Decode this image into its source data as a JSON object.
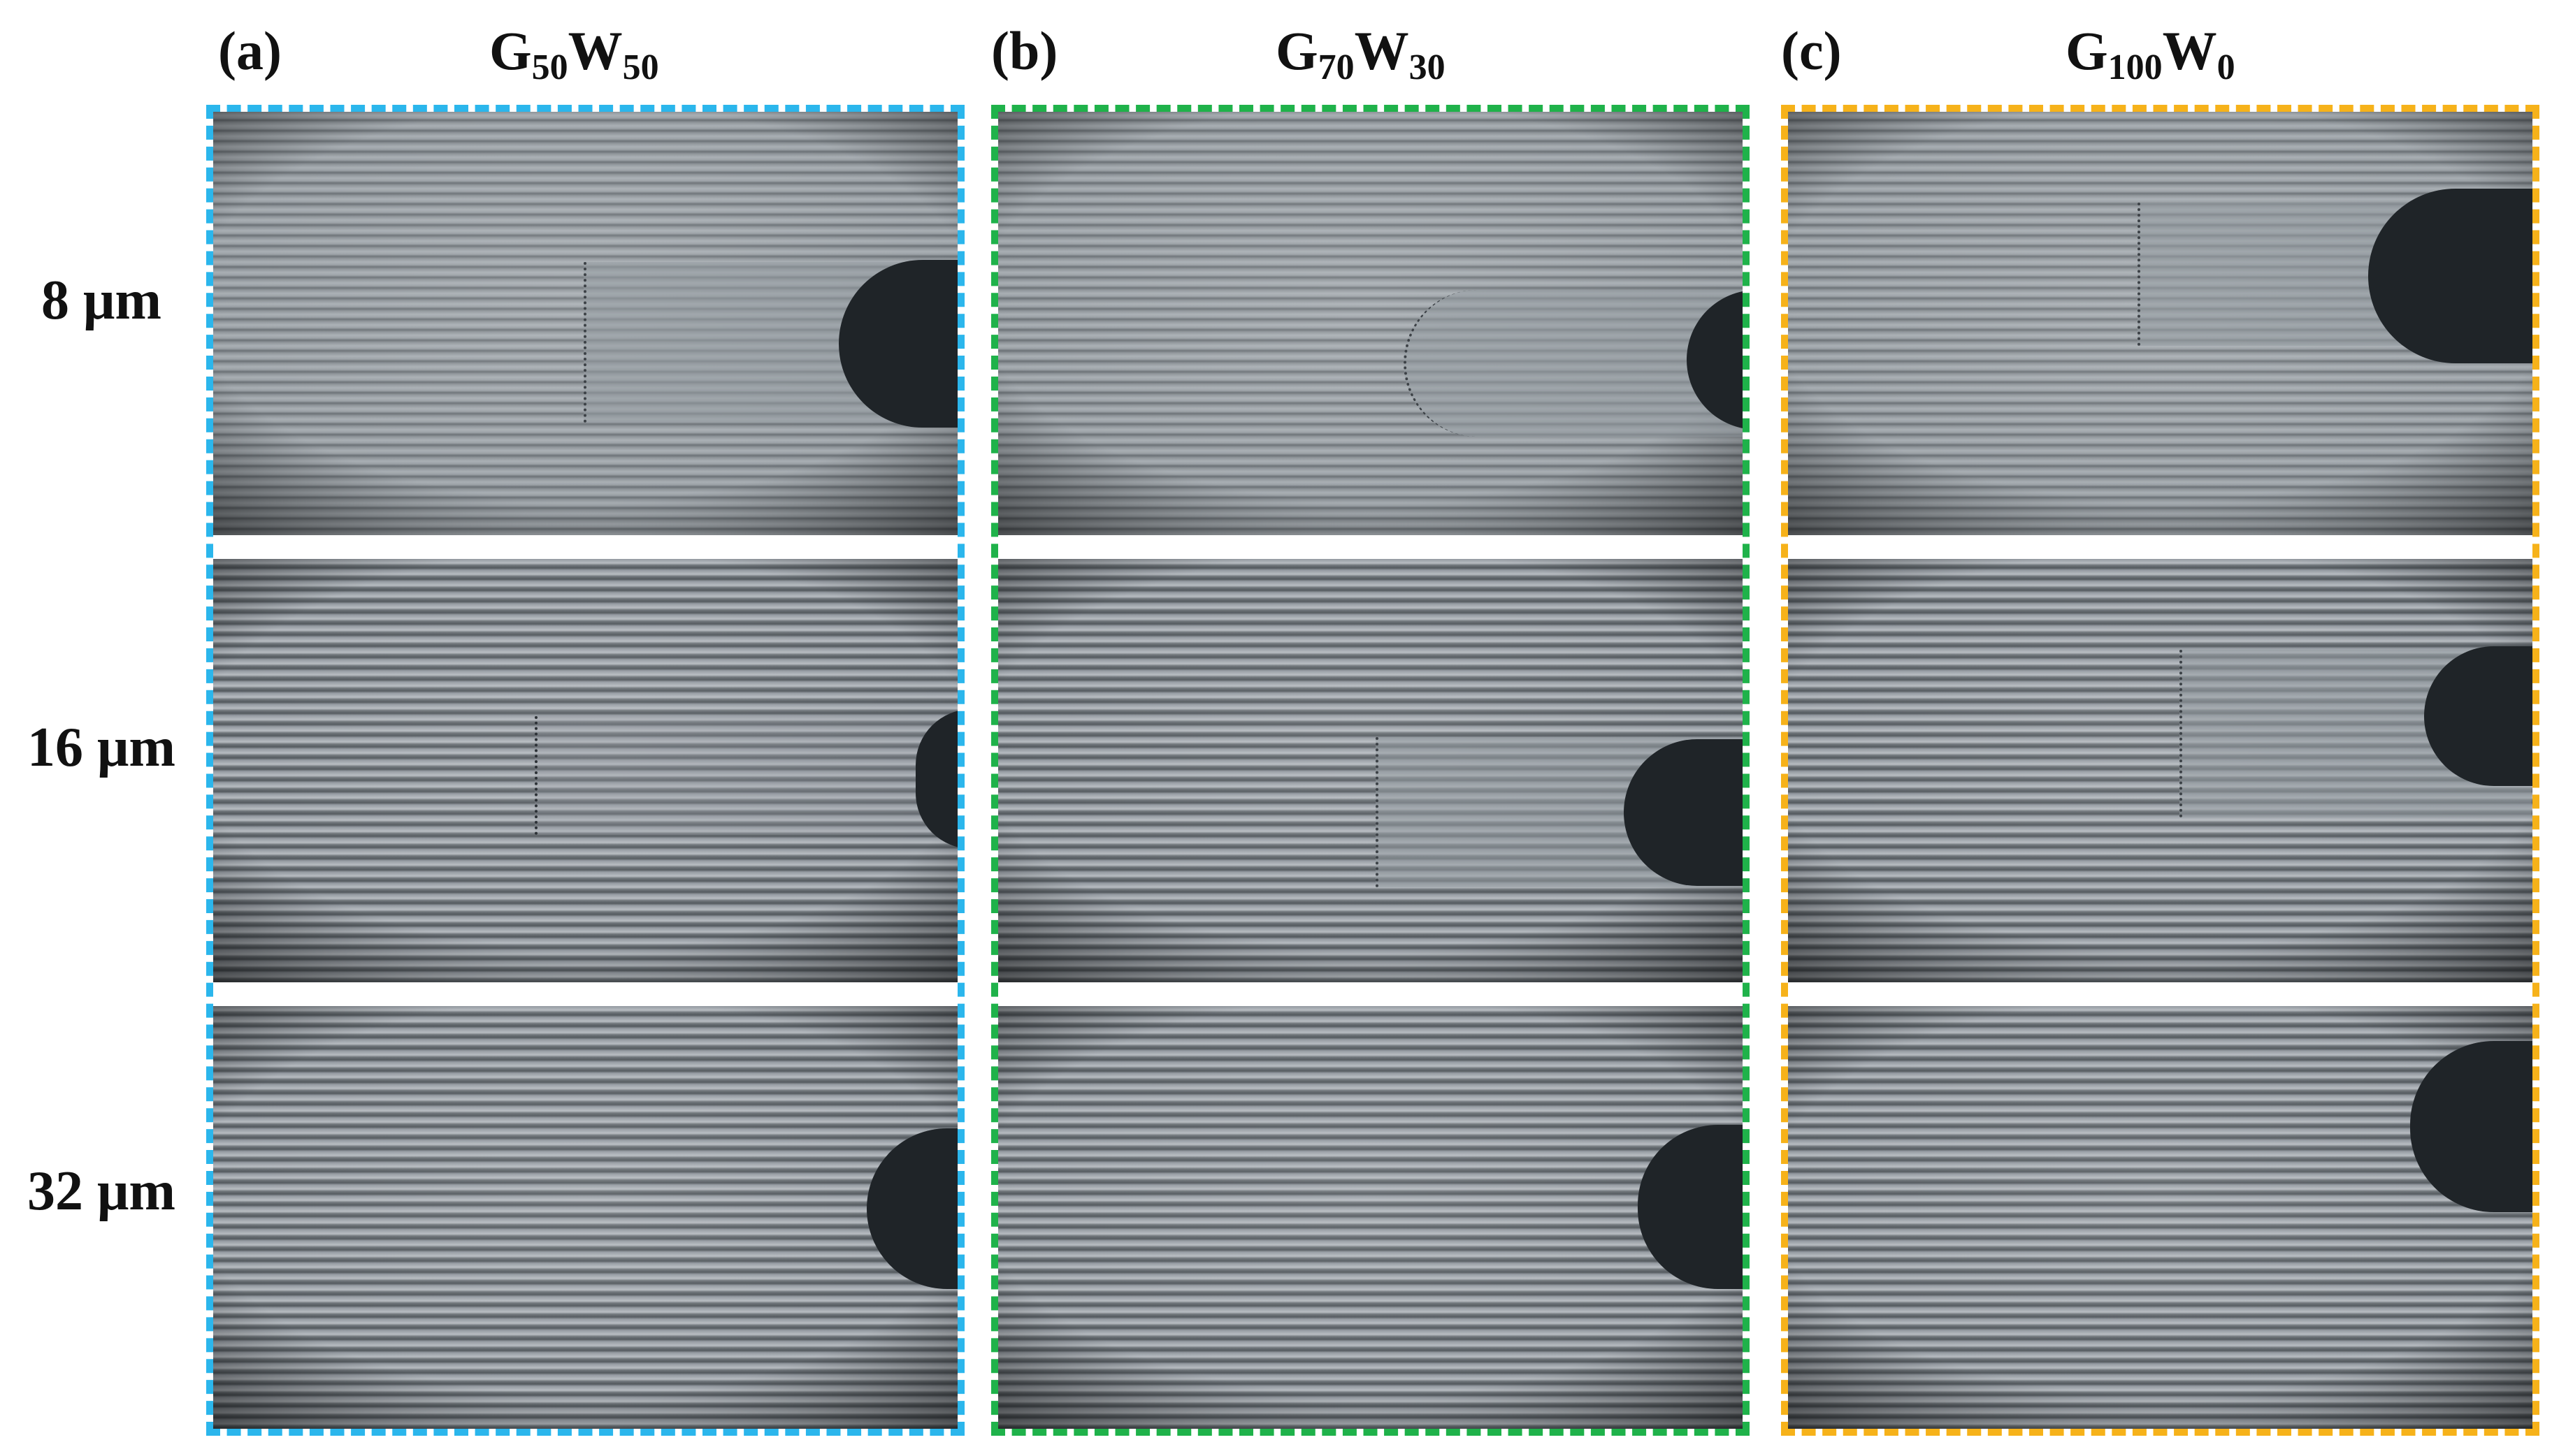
{
  "panel_labels": [
    "(a)",
    "(b)",
    "(c)"
  ],
  "column_titles": [
    {
      "base1": "G",
      "sub1": "50",
      "base2": "W",
      "sub2": "50"
    },
    {
      "base1": "G",
      "sub1": "70",
      "base2": "W",
      "sub2": "30"
    },
    {
      "base1": "G",
      "sub1": "100",
      "base2": "W",
      "sub2": "0"
    }
  ],
  "row_labels": [
    "8 μm",
    "16 μm",
    "32 μm"
  ],
  "colors": {
    "frame_a": "#2bb6ec",
    "frame_b": "#1fb24a",
    "frame_c": "#f6b21a",
    "droplet": "#1f2428"
  }
}
